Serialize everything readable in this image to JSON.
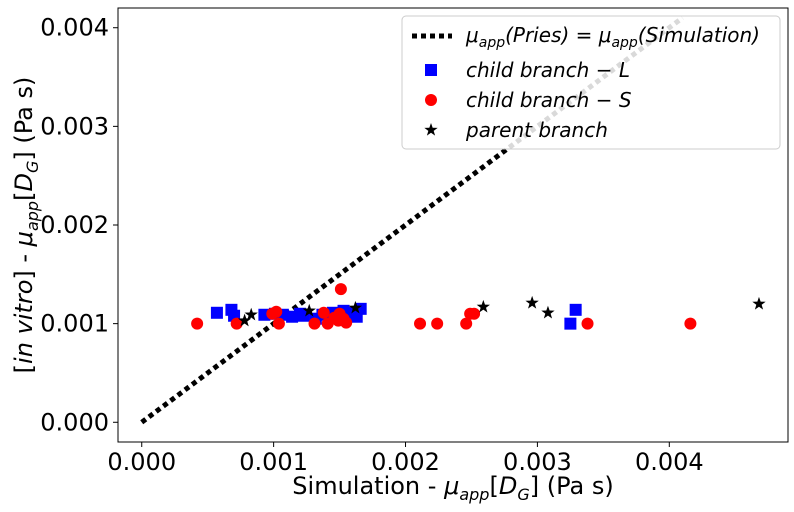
{
  "chart_data": {
    "type": "scatter",
    "xlabel": "Simulation - μapp[DG] (Pa s)",
    "ylabel": "[in vitro] - μapp[DG] (Pa s)",
    "xlim": [
      -0.00018,
      0.0049
    ],
    "ylim": [
      -0.0002,
      0.0042
    ],
    "x_ticks": [
      "0.000",
      "0.001",
      "0.002",
      "0.003",
      "0.004"
    ],
    "y_ticks": [
      "0.000",
      "0.001",
      "0.002",
      "0.003",
      "0.004"
    ],
    "grid": false,
    "legend_position": "top-right",
    "identity_line": {
      "name": "μapp(Pries) = μapp(Simulation)",
      "x": [
        0,
        0.0041
      ],
      "y": [
        0,
        0.0041
      ],
      "color": "#000000",
      "style": "dotted"
    },
    "series": [
      {
        "name": "child branch − L",
        "marker": "square",
        "color": "#0000ff",
        "x": [
          0.00057,
          0.00068,
          0.0007,
          0.00093,
          0.00101,
          0.00107,
          0.00114,
          0.0012,
          0.00123,
          0.00132,
          0.00137,
          0.00142,
          0.00145,
          0.00153,
          0.00159,
          0.00163,
          0.00166,
          0.00325,
          0.00329
        ],
        "y": [
          0.00111,
          0.00114,
          0.00108,
          0.00109,
          0.0011,
          0.00109,
          0.00107,
          0.0011,
          0.00108,
          0.00105,
          0.00109,
          0.0011,
          0.00111,
          0.00113,
          0.00111,
          0.00107,
          0.00115,
          0.001,
          0.00114
        ]
      },
      {
        "name": "child branch − S",
        "marker": "circle",
        "color": "#ff0000",
        "x": [
          0.00042,
          0.00072,
          0.00099,
          0.00102,
          0.00104,
          0.00131,
          0.00138,
          0.00141,
          0.00146,
          0.00149,
          0.0015,
          0.00151,
          0.00153,
          0.00155,
          0.00211,
          0.00224,
          0.00246,
          0.00249,
          0.00252,
          0.00338,
          0.00416
        ],
        "y": [
          0.001,
          0.001,
          0.0011,
          0.00112,
          0.001,
          0.001,
          0.00111,
          0.001,
          0.00106,
          0.00103,
          0.0011,
          0.00135,
          0.00105,
          0.00101,
          0.001,
          0.001,
          0.001,
          0.0011,
          0.0011,
          0.001,
          0.001
        ]
      },
      {
        "name": "parent branch",
        "marker": "star",
        "color": "#000000",
        "x": [
          0.00078,
          0.00083,
          0.00127,
          0.00162,
          0.00259,
          0.00296,
          0.00308,
          0.00468
        ],
        "y": [
          0.00103,
          0.00109,
          0.00113,
          0.00116,
          0.00117,
          0.00121,
          0.00111,
          0.0012
        ]
      }
    ]
  }
}
